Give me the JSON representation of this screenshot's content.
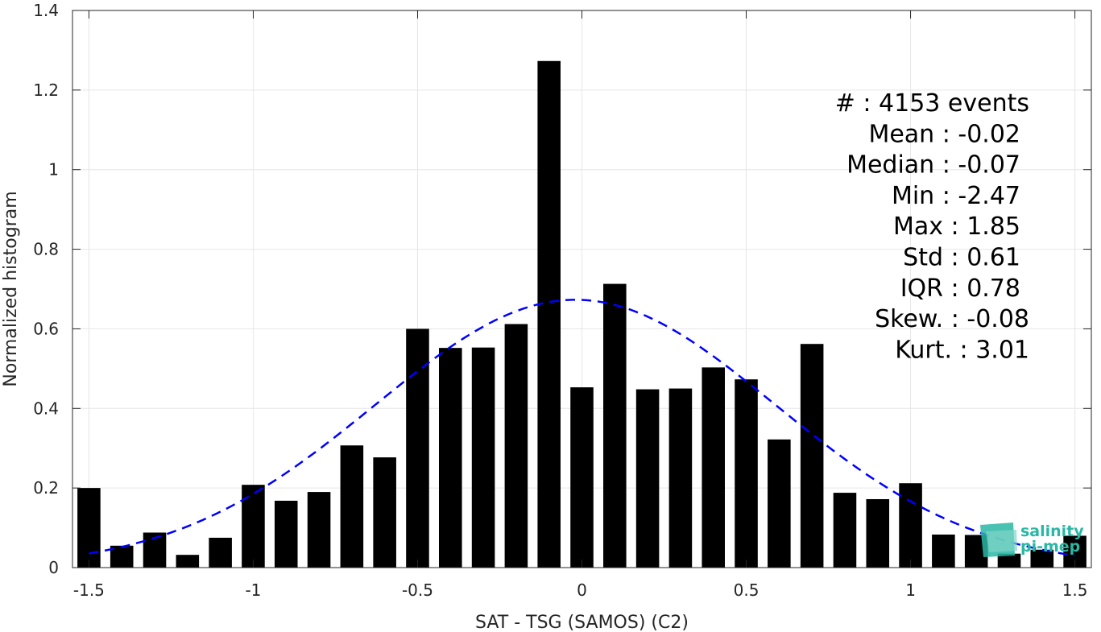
{
  "chart_data": {
    "type": "bar",
    "xlabel": "SAT - TSG (SAMOS) (C2)",
    "ylabel": "Normalized histogram",
    "xlim": [
      -1.55,
      1.55
    ],
    "ylim": [
      0,
      1.4
    ],
    "xticks": [
      -1.5,
      -1,
      -0.5,
      0,
      0.5,
      1,
      1.5
    ],
    "xtick_labels": [
      "-1.5",
      "-1",
      "-0.5",
      "0",
      "0.5",
      "1",
      "1.5"
    ],
    "yticks": [
      0,
      0.2,
      0.4,
      0.6,
      0.8,
      1,
      1.2,
      1.4
    ],
    "ytick_labels": [
      "0",
      "0.2",
      "0.4",
      "0.6",
      "0.8",
      "1",
      "1.2",
      "1.4"
    ],
    "grid": true,
    "bar_color": "#000000",
    "bars": {
      "x": [
        -1.5,
        -1.4,
        -1.3,
        -1.2,
        -1.1,
        -1.0,
        -0.9,
        -0.8,
        -0.7,
        -0.6,
        -0.5,
        -0.4,
        -0.3,
        -0.2,
        -0.1,
        0.0,
        0.1,
        0.2,
        0.3,
        0.4,
        0.5,
        0.6,
        0.7,
        0.8,
        0.9,
        1.0,
        1.1,
        1.2,
        1.3,
        1.4,
        1.5
      ],
      "values": [
        0.2,
        0.055,
        0.088,
        0.032,
        0.075,
        0.208,
        0.168,
        0.19,
        0.307,
        0.277,
        0.6,
        0.552,
        0.553,
        0.612,
        1.273,
        0.453,
        0.713,
        0.448,
        0.45,
        0.503,
        0.473,
        0.322,
        0.562,
        0.188,
        0.172,
        0.212,
        0.083,
        0.082,
        0.035,
        0.045,
        0.08
      ],
      "width": 0.07
    },
    "fit_curve": {
      "type": "normal",
      "mean": -0.02,
      "std": 0.61,
      "peak": 0.673,
      "color": "#0000ff",
      "style": "dashed"
    },
    "stats": [
      {
        "label": "#  : 4153 events",
        "align": "end-far"
      },
      {
        "label": "Mean : -0.02",
        "align": "end"
      },
      {
        "label": "Median : -0.07",
        "align": "end"
      },
      {
        "label": "Min : -2.47",
        "align": "end"
      },
      {
        "label": "Max : 1.85",
        "align": "end"
      },
      {
        "label": "Std : 0.61",
        "align": "end"
      },
      {
        "label": "IQR : 0.78",
        "align": "end"
      },
      {
        "label": "Skew. : -0.08",
        "align": "end-far"
      },
      {
        "label": "Kurt. : 3.01",
        "align": "end-far"
      }
    ]
  },
  "logo": {
    "line1": "salinity",
    "line2": "pi-mep",
    "color": "#2ab7a4"
  }
}
